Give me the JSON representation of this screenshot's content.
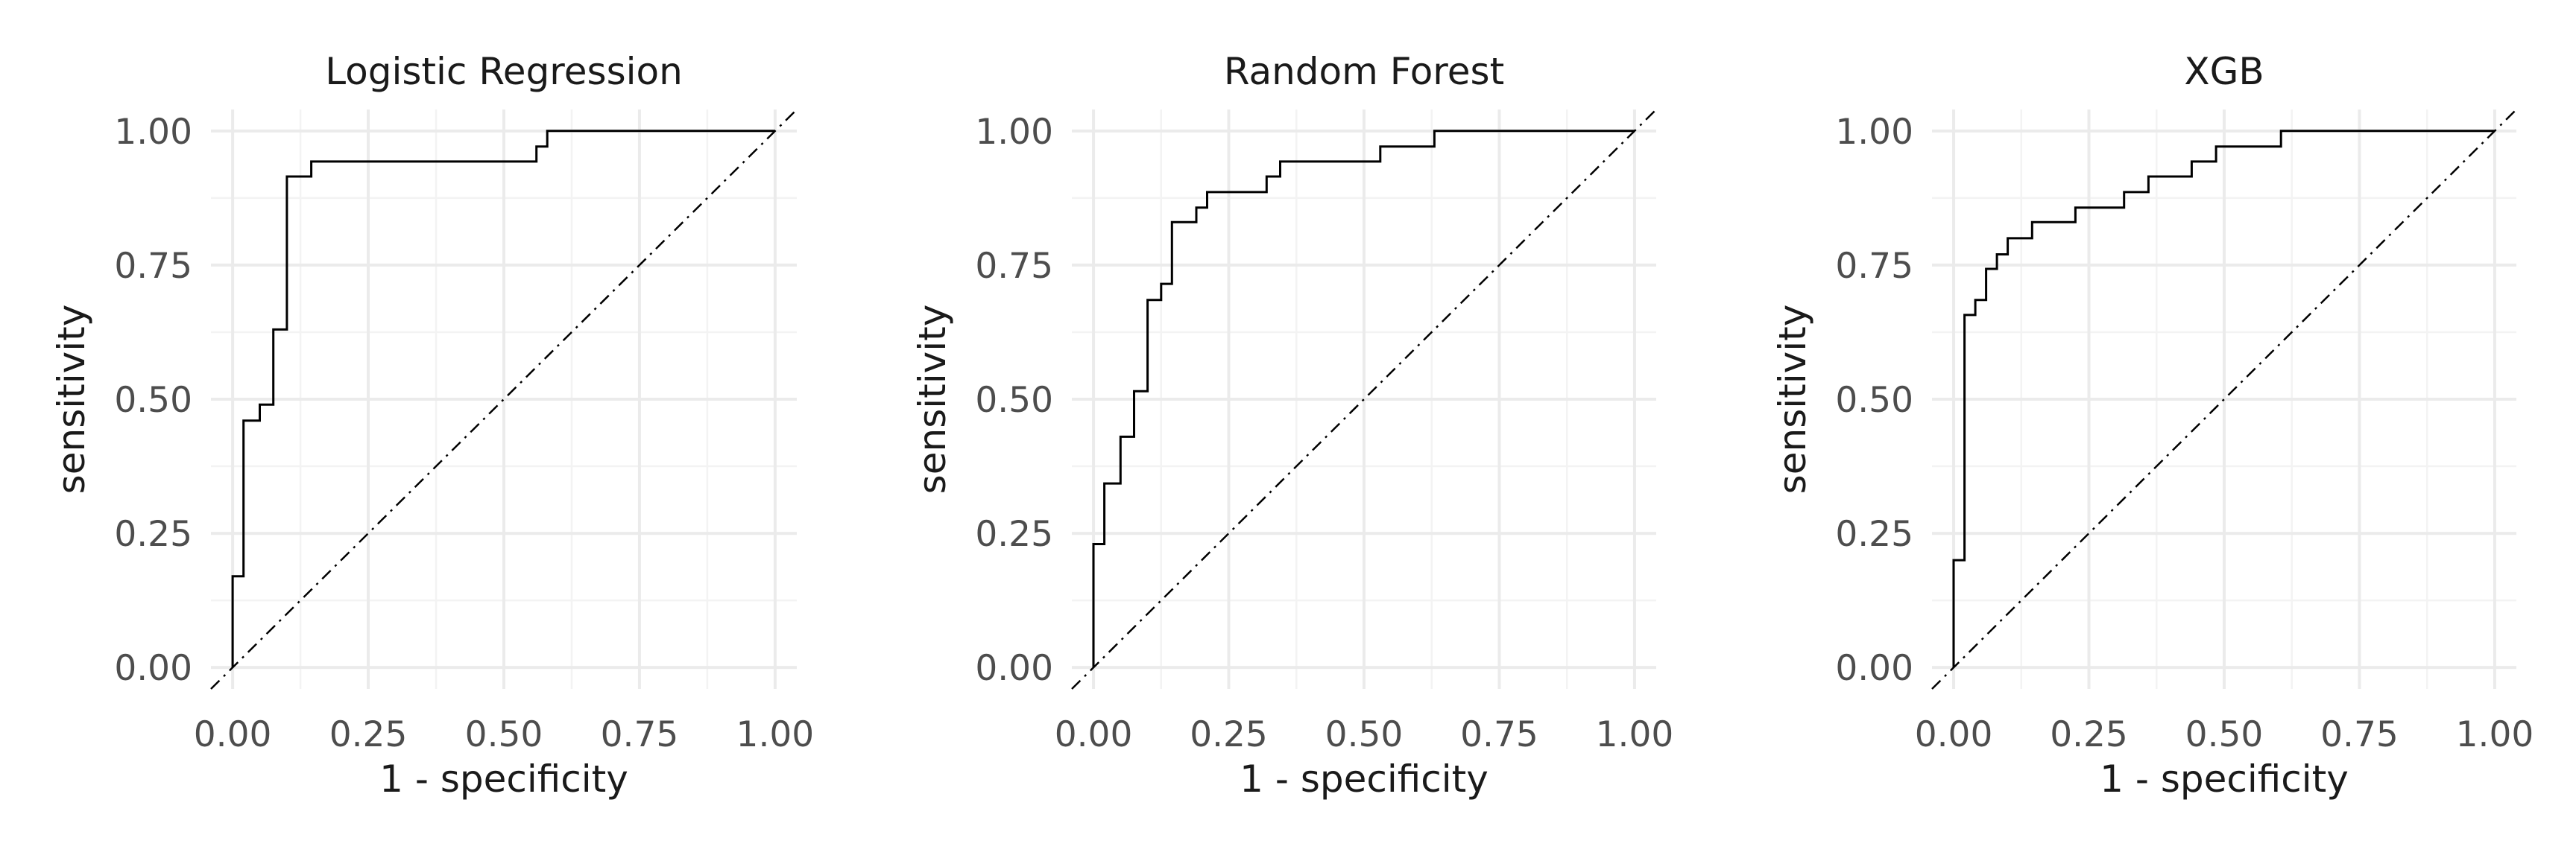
{
  "chart_data": [
    {
      "type": "line",
      "title": "Logistic Regression",
      "xlabel": "1 - specificity",
      "ylabel": "sensitivity",
      "xlim": [
        0,
        1
      ],
      "ylim": [
        0,
        1
      ],
      "xticks": [
        "0.00",
        "0.25",
        "0.50",
        "0.75",
        "1.00"
      ],
      "yticks": [
        "0.00",
        "0.25",
        "0.50",
        "0.75",
        "1.00"
      ],
      "grid": true,
      "reference_line": "diagonal",
      "x": [
        0.0,
        0.0,
        0.02,
        0.02,
        0.05,
        0.05,
        0.075,
        0.075,
        0.1,
        0.1,
        0.145,
        0.145,
        0.56,
        0.56,
        0.58,
        0.58,
        1.0
      ],
      "y": [
        0.0,
        0.17,
        0.17,
        0.46,
        0.46,
        0.49,
        0.49,
        0.63,
        0.63,
        0.915,
        0.915,
        0.943,
        0.943,
        0.971,
        0.971,
        1.0,
        1.0
      ]
    },
    {
      "type": "line",
      "title": "Random Forest",
      "xlabel": "1 - specificity",
      "ylabel": "sensitivity",
      "xlim": [
        0,
        1
      ],
      "ylim": [
        0,
        1
      ],
      "xticks": [
        "0.00",
        "0.25",
        "0.50",
        "0.75",
        "1.00"
      ],
      "yticks": [
        "0.00",
        "0.25",
        "0.50",
        "0.75",
        "1.00"
      ],
      "grid": true,
      "reference_line": "diagonal",
      "x": [
        0.0,
        0.0,
        0.02,
        0.02,
        0.05,
        0.05,
        0.075,
        0.075,
        0.1,
        0.1,
        0.125,
        0.125,
        0.145,
        0.145,
        0.19,
        0.19,
        0.21,
        0.21,
        0.32,
        0.32,
        0.345,
        0.345,
        0.53,
        0.53,
        0.63,
        0.63,
        1.0
      ],
      "y": [
        0.0,
        0.23,
        0.23,
        0.343,
        0.343,
        0.43,
        0.43,
        0.515,
        0.515,
        0.685,
        0.685,
        0.715,
        0.715,
        0.83,
        0.83,
        0.857,
        0.857,
        0.886,
        0.886,
        0.915,
        0.915,
        0.943,
        0.943,
        0.971,
        0.971,
        1.0,
        1.0
      ]
    },
    {
      "type": "line",
      "title": "XGB",
      "xlabel": "1 - specificity",
      "ylabel": "sensitivity",
      "xlim": [
        0,
        1
      ],
      "ylim": [
        0,
        1
      ],
      "xticks": [
        "0.00",
        "0.25",
        "0.50",
        "0.75",
        "1.00"
      ],
      "yticks": [
        "0.00",
        "0.25",
        "0.50",
        "0.75",
        "1.00"
      ],
      "grid": true,
      "reference_line": "diagonal",
      "x": [
        0.0,
        0.0,
        0.02,
        0.02,
        0.04,
        0.04,
        0.06,
        0.06,
        0.08,
        0.08,
        0.1,
        0.1,
        0.145,
        0.145,
        0.225,
        0.225,
        0.315,
        0.315,
        0.36,
        0.36,
        0.44,
        0.44,
        0.485,
        0.485,
        0.605,
        0.605,
        1.0
      ],
      "y": [
        0.0,
        0.2,
        0.2,
        0.657,
        0.657,
        0.685,
        0.685,
        0.743,
        0.743,
        0.77,
        0.77,
        0.8,
        0.8,
        0.83,
        0.83,
        0.857,
        0.857,
        0.886,
        0.886,
        0.915,
        0.915,
        0.943,
        0.943,
        0.971,
        0.971,
        1.0,
        1.0
      ]
    }
  ]
}
